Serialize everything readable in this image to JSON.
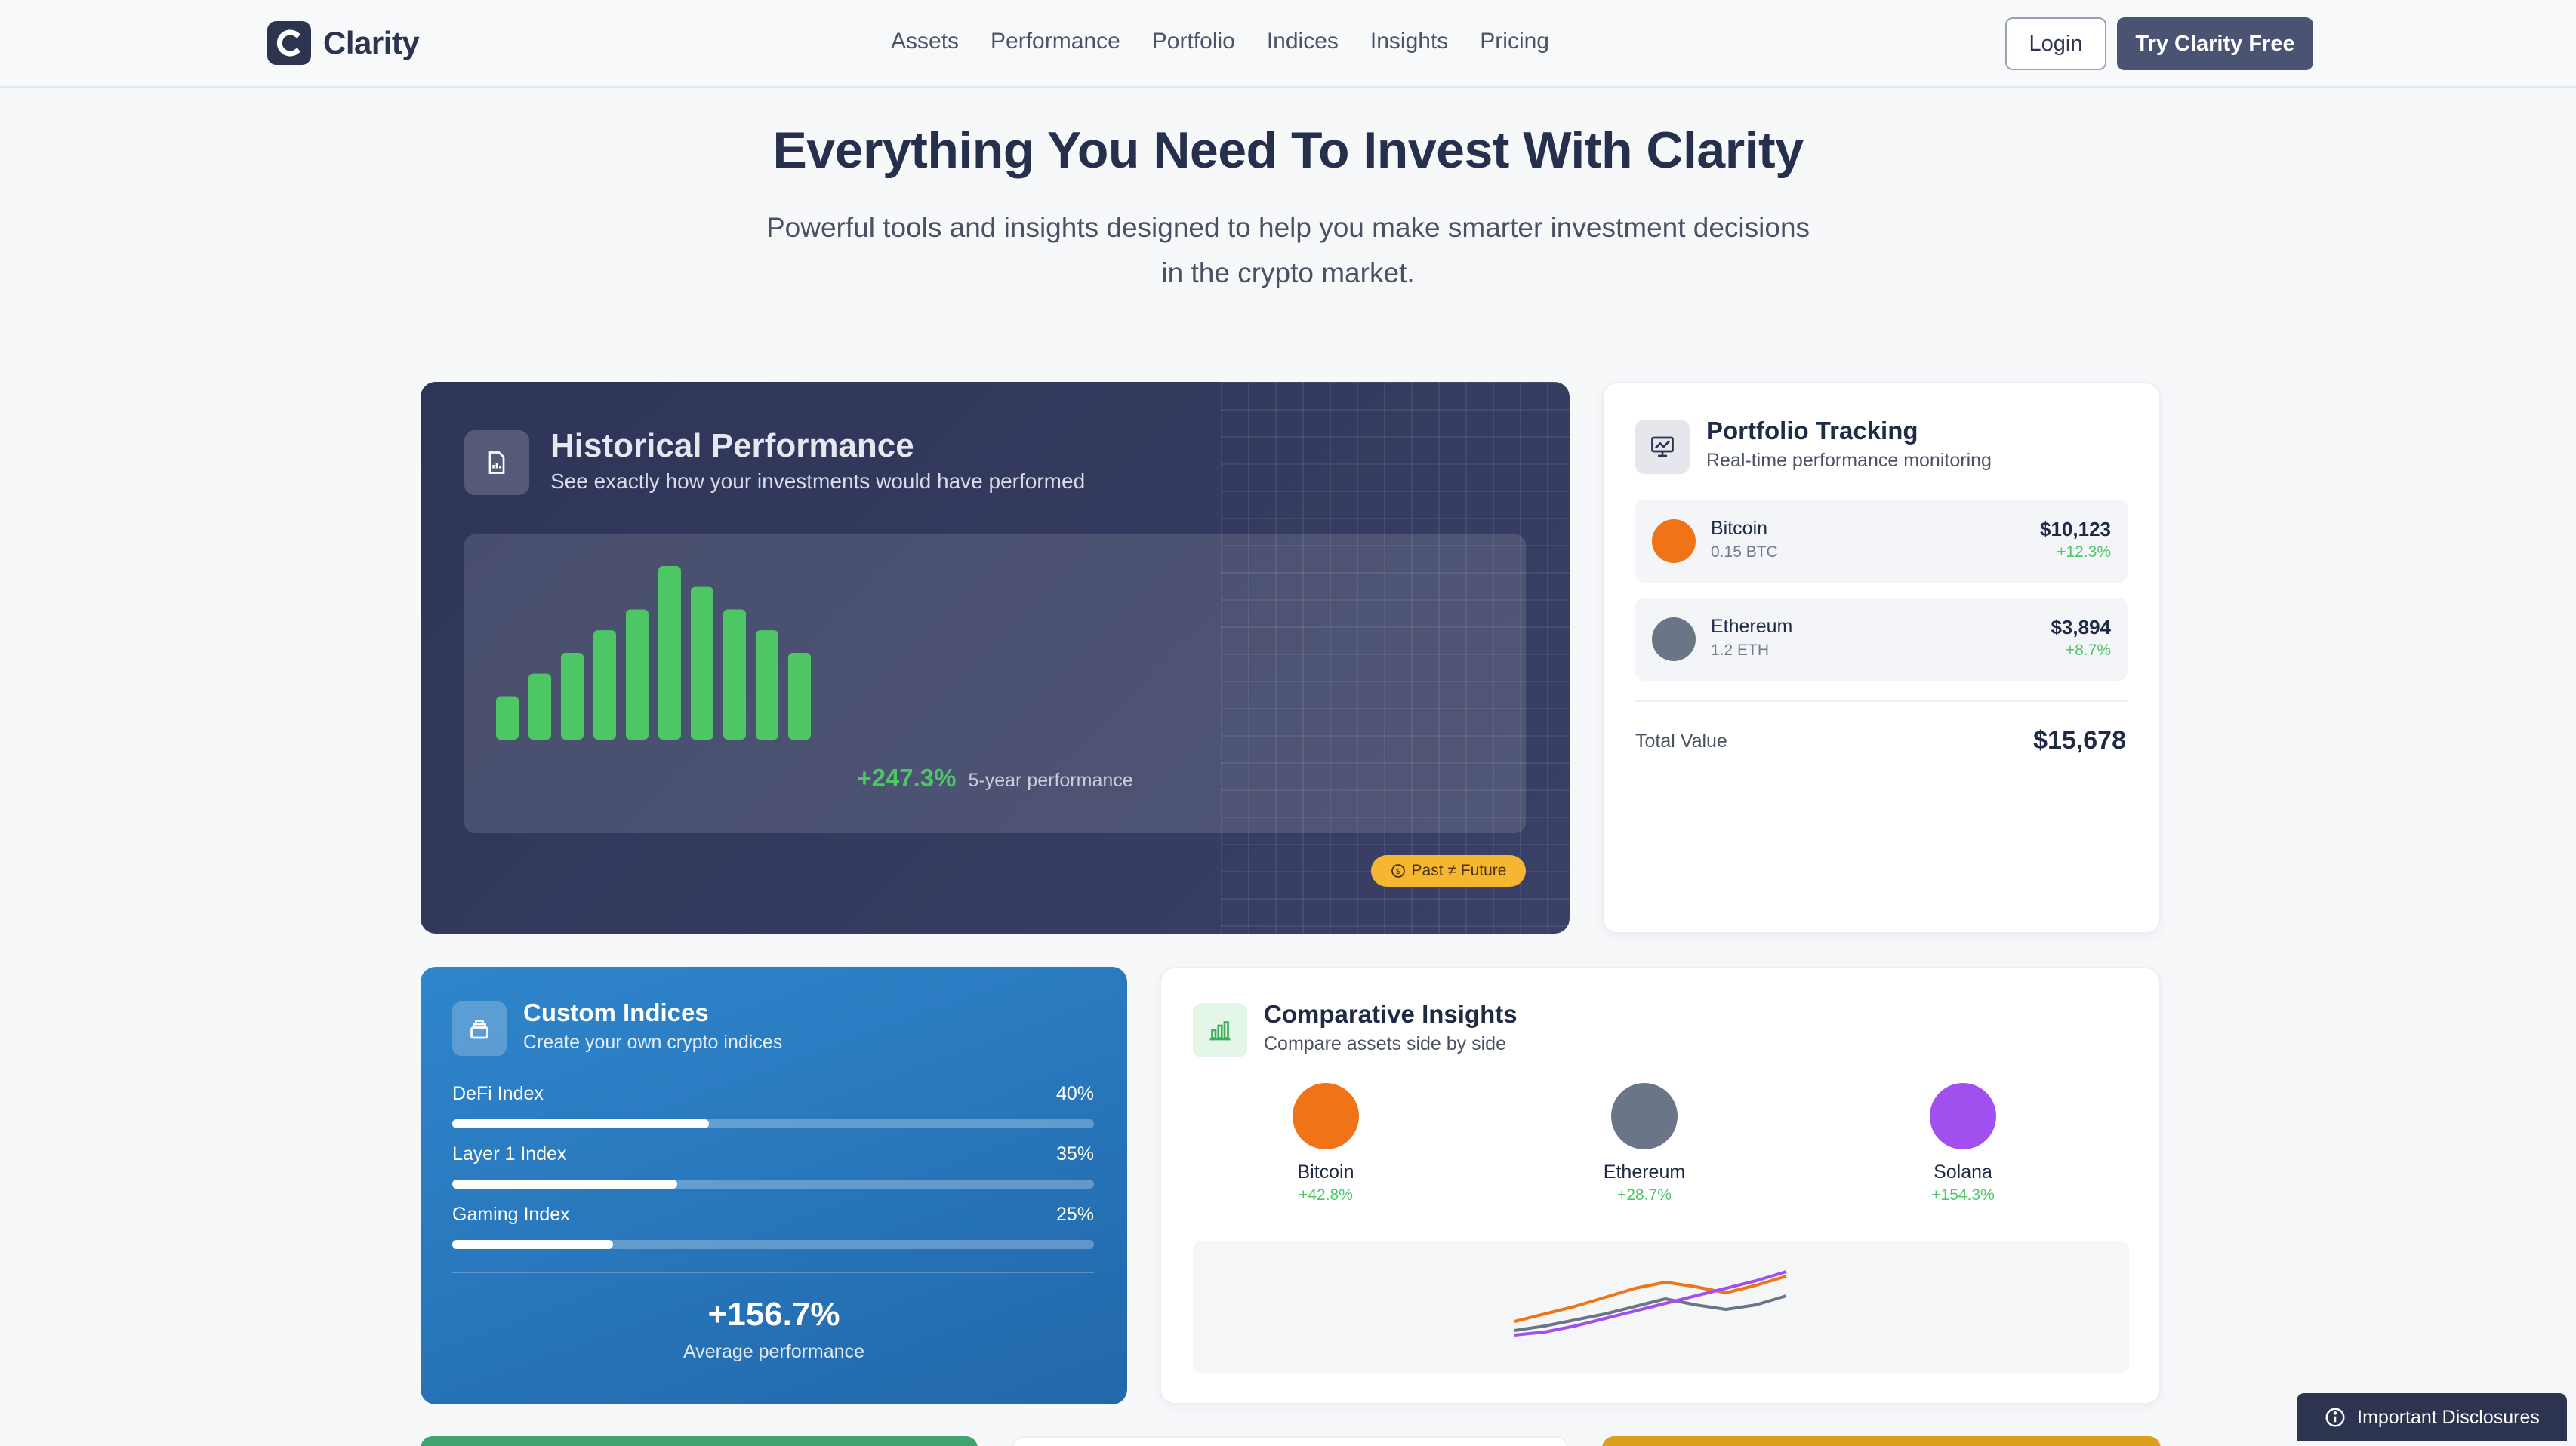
{
  "nav": {
    "brand": "Clarity",
    "links": [
      "Assets",
      "Performance",
      "Portfolio",
      "Indices",
      "Insights",
      "Pricing"
    ],
    "login": "Login",
    "cta": "Try Clarity Free"
  },
  "hero": {
    "title": "Everything You Need To Invest With Clarity",
    "subtitle_line1": "Powerful tools and insights designed to help you make smarter investment decisions",
    "subtitle_line2": "in the crypto market."
  },
  "historical": {
    "title": "Historical Performance",
    "subtitle": "See exactly how your investments would have performed",
    "bar_levels": [
      0.25,
      0.38,
      0.5,
      0.63,
      0.75,
      1.0,
      0.88,
      0.75,
      0.63,
      0.5
    ],
    "performance_value": "+247.3%",
    "performance_label": "5-year performance",
    "badge": "Past ≠ Future",
    "bar_color": "#4cc763"
  },
  "portfolio": {
    "title": "Portfolio Tracking",
    "subtitle": "Real-time performance monitoring",
    "assets": [
      {
        "name": "Bitcoin",
        "amount": "0.15 BTC",
        "value": "$10,123",
        "change": "+12.3%",
        "color": "#f07417"
      },
      {
        "name": "Ethereum",
        "amount": "1.2 ETH",
        "value": "$3,894",
        "change": "+8.7%",
        "color": "#6b7588"
      }
    ],
    "total_label": "Total Value",
    "total_value": "$15,678"
  },
  "indices": {
    "title": "Custom Indices",
    "subtitle": "Create your own crypto indices",
    "items": [
      {
        "name": "DeFi Index",
        "pct": "40%",
        "fill": 0.4
      },
      {
        "name": "Layer 1 Index",
        "pct": "35%",
        "fill": 0.35
      },
      {
        "name": "Gaming Index",
        "pct": "25%",
        "fill": 0.25
      }
    ],
    "avg_value": "+156.7%",
    "avg_label": "Average performance"
  },
  "insights": {
    "title": "Comparative Insights",
    "subtitle": "Compare assets side by side",
    "assets": [
      {
        "name": "Bitcoin",
        "change": "+42.8%",
        "color": "#f07417"
      },
      {
        "name": "Ethereum",
        "change": "+28.7%",
        "color": "#6b7588"
      },
      {
        "name": "Solana",
        "change": "+154.3%",
        "color": "#a24ff0"
      }
    ]
  },
  "footer": {
    "disclosures": "Important Disclosures"
  },
  "colors": {
    "accent_green": "#4cc763",
    "navy": "#2c3450",
    "blue": "#2a78bf",
    "badge_yellow": "#f5b731"
  }
}
